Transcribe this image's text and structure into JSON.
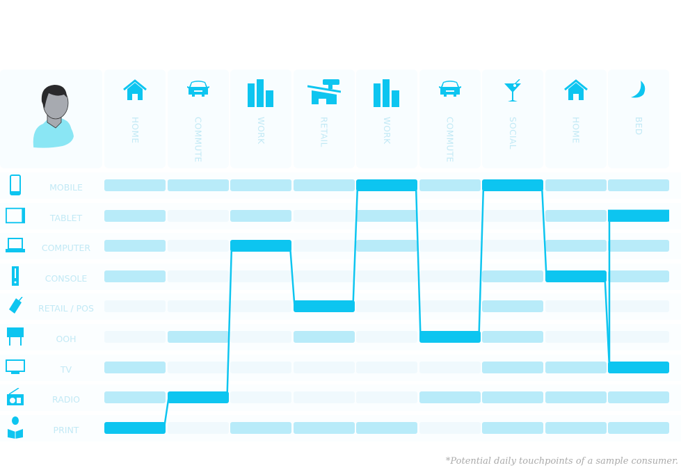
{
  "colors": {
    "active": "#0dc5f0",
    "medium": "#b8ebf9",
    "faint": "#f0f9fd",
    "label": "#c2e9f5"
  },
  "columns": [
    {
      "label": "HOME",
      "icon": "house-icon"
    },
    {
      "label": "COMMUTE",
      "icon": "car-icon"
    },
    {
      "label": "WORK",
      "icon": "buildings-icon"
    },
    {
      "label": "RETAIL",
      "icon": "store-icon"
    },
    {
      "label": "WORK",
      "icon": "buildings-icon"
    },
    {
      "label": "COMMUTE",
      "icon": "car-icon"
    },
    {
      "label": "SOCIAL",
      "icon": "cocktail-icon"
    },
    {
      "label": "HOME",
      "icon": "house-icon"
    },
    {
      "label": "BED",
      "icon": "moon-icon"
    }
  ],
  "rows": [
    {
      "label": "MOBILE",
      "icon": "mobile-icon",
      "states": [
        1,
        1,
        1,
        1,
        2,
        1,
        2,
        1,
        1
      ]
    },
    {
      "label": "TABLET",
      "icon": "tablet-icon",
      "states": [
        1,
        0,
        1,
        0,
        1,
        0,
        0,
        1,
        2
      ]
    },
    {
      "label": "COMPUTER",
      "icon": "laptop-icon",
      "states": [
        1,
        0,
        2,
        0,
        1,
        0,
        0,
        1,
        1
      ]
    },
    {
      "label": "CONSOLE",
      "icon": "console-icon",
      "states": [
        1,
        0,
        0,
        0,
        0,
        0,
        1,
        2,
        1
      ]
    },
    {
      "label": "RETAIL / POS",
      "icon": "tag-icon",
      "states": [
        0,
        0,
        0,
        2,
        0,
        0,
        1,
        0,
        0
      ]
    },
    {
      "label": "OOH",
      "icon": "billboard-icon",
      "states": [
        0,
        1,
        0,
        1,
        0,
        2,
        1,
        0,
        0
      ]
    },
    {
      "label": "TV",
      "icon": "tv-icon",
      "states": [
        1,
        0,
        0,
        0,
        0,
        0,
        1,
        1,
        2
      ]
    },
    {
      "label": "RADIO",
      "icon": "radio-icon",
      "states": [
        1,
        2,
        0,
        0,
        0,
        1,
        1,
        1,
        1
      ]
    },
    {
      "label": "PRINT",
      "icon": "reader-icon",
      "states": [
        2,
        0,
        1,
        1,
        1,
        0,
        1,
        1,
        1
      ]
    }
  ],
  "journey": [
    "PRINT",
    "RADIO",
    "COMPUTER",
    "RETAIL / POS",
    "MOBILE",
    "OOH",
    "MOBILE",
    "CONSOLE",
    "TV",
    "TABLET"
  ],
  "footnote": "*Potential daily touchpoints of a sample consumer."
}
